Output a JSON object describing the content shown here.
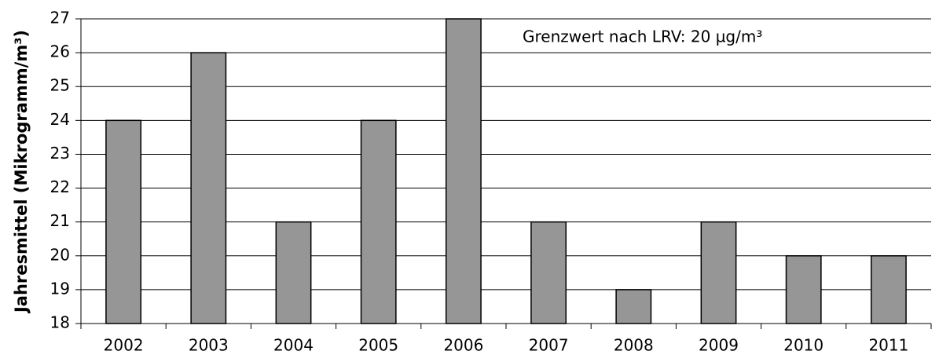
{
  "chart_data": {
    "type": "bar",
    "ylabel": "Jahresmittel (Mikrogramm/m³)",
    "annotation": "Grenzwert nach LRV: 20 µg/m³",
    "categories": [
      "2002",
      "2003",
      "2004",
      "2005",
      "2006",
      "2007",
      "2008",
      "2009",
      "2010",
      "2011"
    ],
    "values": [
      24,
      26,
      21,
      24,
      27,
      21,
      19,
      21,
      20,
      20
    ],
    "color": "#969696",
    "ylim": [
      18,
      27
    ],
    "yticks": [
      18,
      19,
      20,
      21,
      22,
      23,
      24,
      25,
      26,
      27
    ],
    "grid": true
  }
}
